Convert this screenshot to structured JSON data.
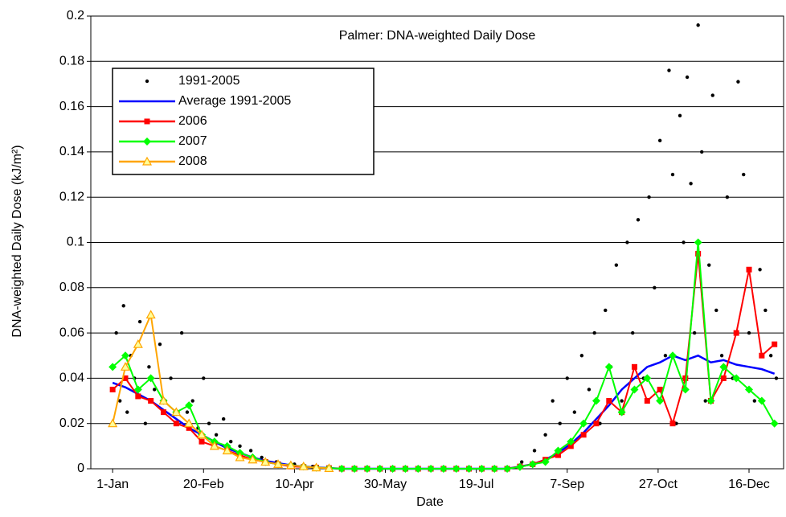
{
  "chart_data": {
    "type": "line",
    "title": "Palmer: DNA-weighted Daily Dose",
    "x_label": "Date",
    "y_label": "DNA-weighted Daily Dose (kJ/m²)",
    "xlim": [
      -12,
      369
    ],
    "ylim": [
      0,
      0.2
    ],
    "xticks": [
      {
        "value": 0,
        "label": "1-Jan"
      },
      {
        "value": 50,
        "label": "20-Feb"
      },
      {
        "value": 100,
        "label": "10-Apr"
      },
      {
        "value": 150,
        "label": "30-May"
      },
      {
        "value": 200,
        "label": "19-Jul"
      },
      {
        "value": 250,
        "label": "7-Sep"
      },
      {
        "value": 300,
        "label": "27-Oct"
      },
      {
        "value": 350,
        "label": "16-Dec"
      }
    ],
    "yticks": [
      0,
      0.02,
      0.04,
      0.06,
      0.08,
      0.1,
      0.12,
      0.14,
      0.16,
      0.18,
      0.2
    ],
    "grid": true,
    "legend": "upper left",
    "series": [
      {
        "name": "1991-2005",
        "color": "#000000",
        "marker": "dot",
        "line": false,
        "x": [
          2,
          4,
          6,
          8,
          10,
          12,
          15,
          18,
          20,
          23,
          26,
          29,
          32,
          35,
          38,
          41,
          44,
          47,
          50,
          53,
          57,
          61,
          65,
          70,
          76,
          82,
          90,
          100,
          110,
          225,
          232,
          238,
          242,
          246,
          250,
          254,
          258,
          262,
          265,
          268,
          271,
          274,
          277,
          280,
          283,
          286,
          289,
          292,
          295,
          298,
          301,
          304,
          306,
          308,
          310,
          312,
          314,
          316,
          318,
          320,
          322,
          324,
          326,
          328,
          330,
          332,
          335,
          338,
          341,
          344,
          347,
          350,
          353,
          356,
          359,
          362,
          365
        ],
        "values": [
          0.06,
          0.03,
          0.072,
          0.025,
          0.05,
          0.04,
          0.065,
          0.02,
          0.045,
          0.035,
          0.055,
          0.03,
          0.04,
          0.02,
          0.06,
          0.025,
          0.03,
          0.018,
          0.04,
          0.02,
          0.015,
          0.022,
          0.012,
          0.01,
          0.008,
          0.005,
          0.003,
          0.002,
          0.001,
          0.003,
          0.008,
          0.015,
          0.03,
          0.02,
          0.04,
          0.025,
          0.05,
          0.035,
          0.06,
          0.02,
          0.07,
          0.045,
          0.09,
          0.03,
          0.1,
          0.06,
          0.11,
          0.04,
          0.12,
          0.08,
          0.145,
          0.05,
          0.176,
          0.13,
          0.02,
          0.156,
          0.1,
          0.173,
          0.126,
          0.06,
          0.196,
          0.14,
          0.03,
          0.09,
          0.165,
          0.07,
          0.05,
          0.12,
          0.04,
          0.171,
          0.13,
          0.06,
          0.03,
          0.088,
          0.07,
          0.05,
          0.04
        ]
      },
      {
        "name": "Average 1991-2005",
        "color": "#0000ff",
        "marker": "none",
        "line": true,
        "x": [
          0,
          7,
          14,
          21,
          28,
          35,
          42,
          49,
          56,
          63,
          70,
          77,
          84,
          91,
          98,
          105,
          112,
          119,
          126,
          133,
          140,
          147,
          154,
          161,
          168,
          175,
          182,
          189,
          196,
          203,
          210,
          217,
          224,
          231,
          238,
          245,
          252,
          259,
          266,
          273,
          280,
          287,
          294,
          301,
          308,
          315,
          322,
          329,
          336,
          343,
          350,
          357,
          364
        ],
        "values": [
          0.038,
          0.036,
          0.033,
          0.03,
          0.026,
          0.022,
          0.018,
          0.015,
          0.012,
          0.009,
          0.007,
          0.005,
          0.0035,
          0.0025,
          0.0015,
          0.001,
          0.0006,
          0.0003,
          0,
          0,
          0,
          0,
          0,
          0,
          0,
          0,
          0,
          0,
          0,
          0,
          0,
          0,
          0.001,
          0.002,
          0.004,
          0.007,
          0.011,
          0.016,
          0.022,
          0.028,
          0.035,
          0.04,
          0.045,
          0.047,
          0.05,
          0.048,
          0.05,
          0.047,
          0.048,
          0.046,
          0.045,
          0.044,
          0.042
        ]
      },
      {
        "name": "2006",
        "color": "#ff0000",
        "marker": "square",
        "line": true,
        "x": [
          0,
          7,
          14,
          21,
          28,
          35,
          42,
          49,
          56,
          63,
          70,
          77,
          84,
          91,
          98,
          105,
          112,
          119,
          126,
          133,
          140,
          147,
          154,
          161,
          168,
          175,
          182,
          189,
          196,
          203,
          210,
          217,
          224,
          231,
          238,
          245,
          252,
          259,
          266,
          273,
          280,
          287,
          294,
          301,
          308,
          315,
          322,
          329,
          336,
          343,
          350,
          357,
          364
        ],
        "values": [
          0.035,
          0.04,
          0.032,
          0.03,
          0.025,
          0.02,
          0.018,
          0.012,
          0.01,
          0.008,
          0.006,
          0.004,
          0.003,
          0.002,
          0.001,
          0.0008,
          0.0005,
          0.0003,
          0,
          0,
          0,
          0,
          0,
          0,
          0,
          0,
          0,
          0,
          0,
          0,
          0,
          0,
          0.001,
          0.002,
          0.004,
          0.006,
          0.01,
          0.015,
          0.02,
          0.03,
          0.025,
          0.045,
          0.03,
          0.035,
          0.02,
          0.04,
          0.095,
          0.03,
          0.04,
          0.06,
          0.088,
          0.05,
          0.055
        ]
      },
      {
        "name": "2007",
        "color": "#00ff00",
        "marker": "diamond",
        "line": true,
        "x": [
          0,
          7,
          14,
          21,
          28,
          35,
          42,
          49,
          56,
          63,
          70,
          77,
          84,
          91,
          98,
          105,
          112,
          119,
          126,
          133,
          140,
          147,
          154,
          161,
          168,
          175,
          182,
          189,
          196,
          203,
          210,
          217,
          224,
          231,
          238,
          245,
          252,
          259,
          266,
          273,
          280,
          287,
          294,
          301,
          308,
          315,
          322,
          329,
          336,
          343,
          350,
          357,
          364
        ],
        "values": [
          0.045,
          0.05,
          0.035,
          0.04,
          0.03,
          0.025,
          0.028,
          0.015,
          0.012,
          0.01,
          0.007,
          0.005,
          0.003,
          0.002,
          0.0015,
          0.001,
          0.0005,
          0.0003,
          0,
          0,
          0,
          0,
          0,
          0,
          0,
          0,
          0,
          0,
          0,
          0,
          0,
          0,
          0.0008,
          0.002,
          0.003,
          0.008,
          0.012,
          0.02,
          0.03,
          0.045,
          0.025,
          0.035,
          0.04,
          0.03,
          0.05,
          0.035,
          0.1,
          0.03,
          0.045,
          0.04,
          0.035,
          0.03,
          0.02
        ]
      },
      {
        "name": "2008",
        "color": "#ffa500",
        "marker": "triangle",
        "line": true,
        "x": [
          0,
          7,
          14,
          21,
          28,
          35,
          42,
          49,
          56,
          63,
          70,
          77,
          84,
          91,
          98,
          105,
          112,
          119
        ],
        "values": [
          0.02,
          0.045,
          0.055,
          0.068,
          0.03,
          0.025,
          0.02,
          0.015,
          0.01,
          0.008,
          0.005,
          0.004,
          0.003,
          0.002,
          0.0015,
          0.001,
          0.0005,
          0.0002
        ]
      }
    ]
  }
}
